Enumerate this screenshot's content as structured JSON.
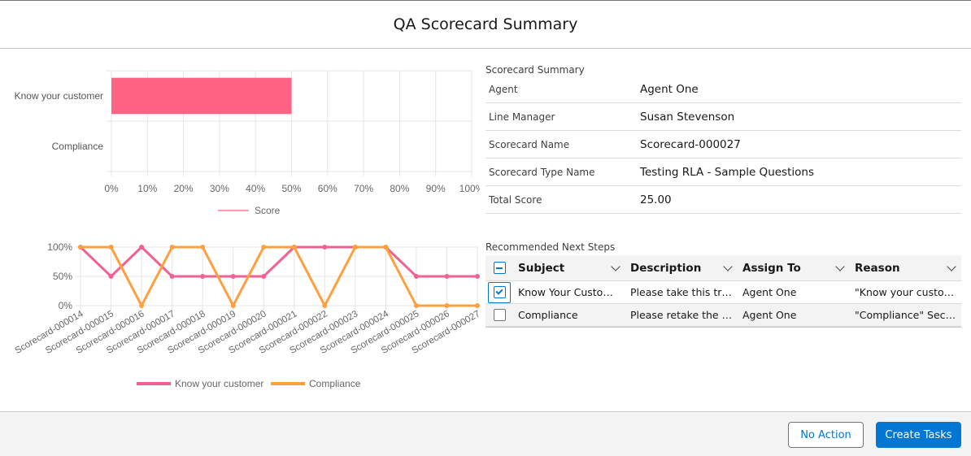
{
  "modal": {
    "title": "QA Scorecard Summary"
  },
  "chart_data": [
    {
      "type": "bar",
      "orientation": "horizontal",
      "categories": [
        "Know your customer",
        "Compliance"
      ],
      "series": [
        {
          "name": "Score",
          "values": [
            50,
            0
          ]
        }
      ],
      "xticks": [
        "0%",
        "10%",
        "20%",
        "30%",
        "40%",
        "50%",
        "60%",
        "70%",
        "80%",
        "90%",
        "100%"
      ],
      "xlim": [
        0,
        100
      ],
      "grid": true,
      "legend": "bottom",
      "colors": [
        "#ff6384"
      ]
    },
    {
      "type": "line",
      "categories": [
        "Scorecard-000014",
        "Scorecard-000015",
        "Scorecard-000016",
        "Scorecard-000017",
        "Scorecard-000018",
        "Scorecard-000019",
        "Scorecard-000020",
        "Scorecard-000021",
        "Scorecard-000022",
        "Scorecard-000023",
        "Scorecard-000024",
        "Scorecard-000025",
        "Scorecard-000026",
        "Scorecard-000027"
      ],
      "series": [
        {
          "name": "Know your customer",
          "values": [
            100,
            50,
            100,
            50,
            50,
            50,
            50,
            100,
            100,
            100,
            100,
            50,
            50,
            50
          ],
          "color": "#f06292"
        },
        {
          "name": "Compliance",
          "values": [
            100,
            100,
            0,
            100,
            100,
            0,
            100,
            100,
            0,
            100,
            100,
            0,
            0,
            0
          ],
          "color": "#ffa040"
        }
      ],
      "yticks": [
        "0%",
        "50%",
        "100%"
      ],
      "ylim": [
        0,
        100
      ],
      "grid": true,
      "legend": "bottom"
    }
  ],
  "summary": {
    "title": "Scorecard Summary",
    "rows": [
      {
        "label": "Agent",
        "value": "Agent One"
      },
      {
        "label": "Line Manager",
        "value": "Susan Stevenson"
      },
      {
        "label": "Scorecard Name",
        "value": "Scorecard-000027"
      },
      {
        "label": "Scorecard Type Name",
        "value": "Testing RLA - Sample Questions"
      },
      {
        "label": "Total Score",
        "value": "25.00"
      }
    ]
  },
  "steps": {
    "title": "Recommended Next Steps",
    "columns": [
      "Subject",
      "Description",
      "Assign To",
      "Reason"
    ],
    "rows": [
      {
        "subject": "Know Your Customer",
        "description": "Please take this training",
        "assign_to": "Agent One",
        "reason": "\"Know your customer\" Section",
        "checked": true
      },
      {
        "subject": "Compliance",
        "description": "Please retake the compliance course",
        "assign_to": "Agent One",
        "reason": "\"Compliance\" Section",
        "checked": false
      }
    ]
  },
  "footer": {
    "no_action_label": "No Action",
    "create_tasks_label": "Create Tasks"
  }
}
